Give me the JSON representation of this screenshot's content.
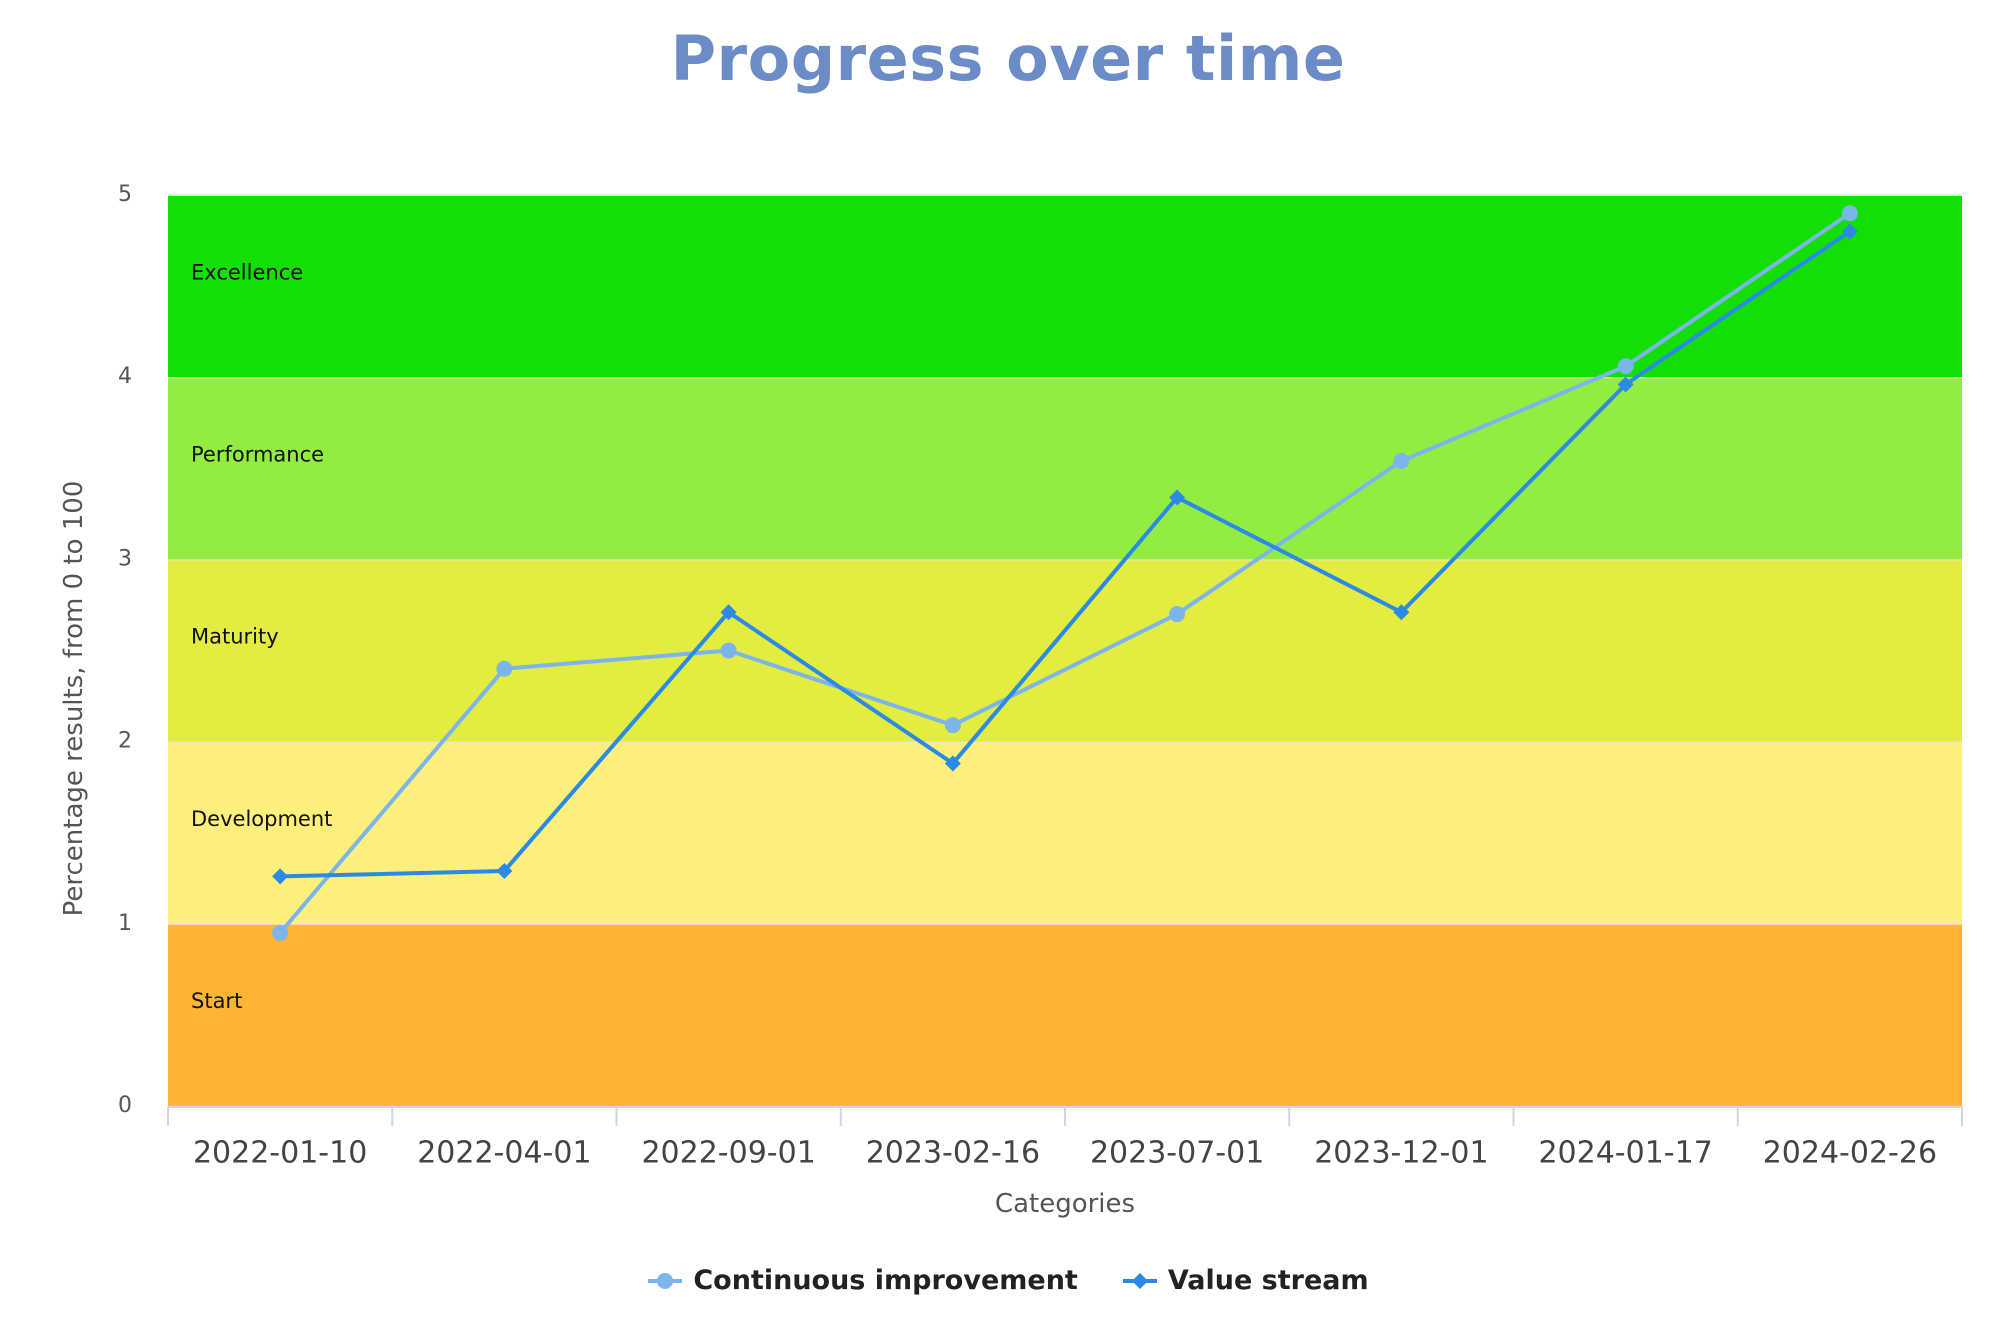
{
  "chart_data": {
    "type": "line",
    "title": "Progress over time",
    "xlabel": "Categories",
    "ylabel": "Percentage results, from 0 to 100",
    "ylim": [
      0,
      5
    ],
    "yticks": [
      "0",
      "1",
      "2",
      "3",
      "4",
      "5"
    ],
    "categories": [
      "2022-01-10",
      "2022-04-01",
      "2022-09-01",
      "2023-02-16",
      "2023-07-01",
      "2023-12-01",
      "2024-01-17",
      "2024-02-26"
    ],
    "bands": [
      {
        "label": "Start",
        "from": 0,
        "to": 1,
        "color": "#ffb533"
      },
      {
        "label": "Development",
        "from": 1,
        "to": 2,
        "color": "#fdef7b"
      },
      {
        "label": "Maturity",
        "from": 2,
        "to": 3,
        "color": "#e3ec40"
      },
      {
        "label": "Performance",
        "from": 3,
        "to": 4,
        "color": "#93ed41"
      },
      {
        "label": "Excellence",
        "from": 4,
        "to": 5,
        "color": "#13df04"
      }
    ],
    "series": [
      {
        "name": "Continuous improvement",
        "color": "#7cb5ec",
        "marker": "circle",
        "values": [
          0.95,
          2.4,
          2.5,
          2.09,
          2.7,
          3.54,
          4.06,
          4.9
        ]
      },
      {
        "name": "Value stream",
        "color": "#2b8ae6",
        "marker": "diamond",
        "values": [
          1.26,
          1.29,
          2.71,
          1.88,
          3.34,
          2.71,
          3.96,
          4.8
        ]
      }
    ],
    "grid": false,
    "legend": "bottom-center"
  }
}
